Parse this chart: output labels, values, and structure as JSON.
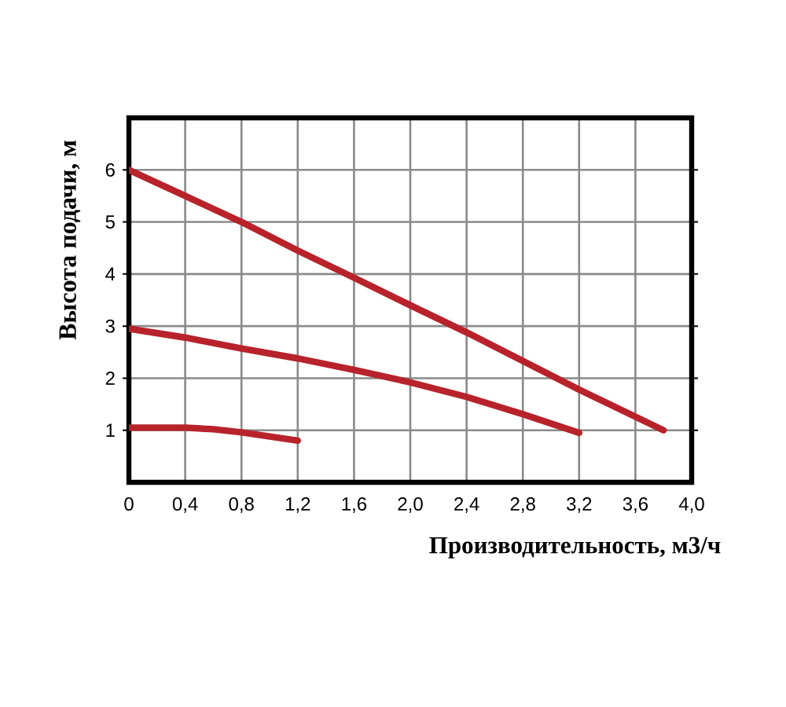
{
  "chart_data": {
    "type": "line",
    "xlabel": "Производительность, м3/ч",
    "ylabel": "Высота подачи, м",
    "xlim": [
      0,
      4.0
    ],
    "ylim": [
      0,
      7
    ],
    "xticks": [
      0,
      {
        "value": 0.4,
        "label": "0,4"
      },
      {
        "value": 0.8,
        "label": "0,8"
      },
      {
        "value": 1.2,
        "label": "1,2"
      },
      {
        "value": 1.6,
        "label": "1,6"
      },
      {
        "value": 2.0,
        "label": "2,0"
      },
      {
        "value": 2.4,
        "label": "2,4"
      },
      {
        "value": 2.8,
        "label": "2,8"
      },
      {
        "value": 3.2,
        "label": "3,2"
      },
      {
        "value": 3.6,
        "label": "3,6"
      },
      {
        "value": 4.0,
        "label": "4,0"
      }
    ],
    "yticks": [
      1,
      2,
      3,
      4,
      5,
      6
    ],
    "grid": true,
    "marker": "none",
    "line_style": "solid",
    "series": [
      {
        "color": "#b8232b",
        "x": [
          0,
          0.4,
          0.8,
          1.2,
          1.6,
          2.0,
          2.4,
          2.8,
          3.2,
          3.8
        ],
        "values": [
          6.0,
          5.5,
          5.0,
          4.45,
          3.93,
          3.4,
          2.88,
          2.33,
          1.78,
          1.0
        ]
      },
      {
        "color": "#b8232b",
        "x": [
          0,
          0.4,
          0.8,
          1.2,
          1.6,
          2.0,
          2.4,
          2.8,
          3.2
        ],
        "values": [
          2.95,
          2.78,
          2.57,
          2.38,
          2.16,
          1.92,
          1.64,
          1.31,
          0.95
        ]
      },
      {
        "color": "#b8232b",
        "x": [
          0,
          0.4,
          0.6,
          0.8,
          1.2
        ],
        "values": [
          1.05,
          1.05,
          1.02,
          0.96,
          0.8
        ]
      }
    ]
  }
}
